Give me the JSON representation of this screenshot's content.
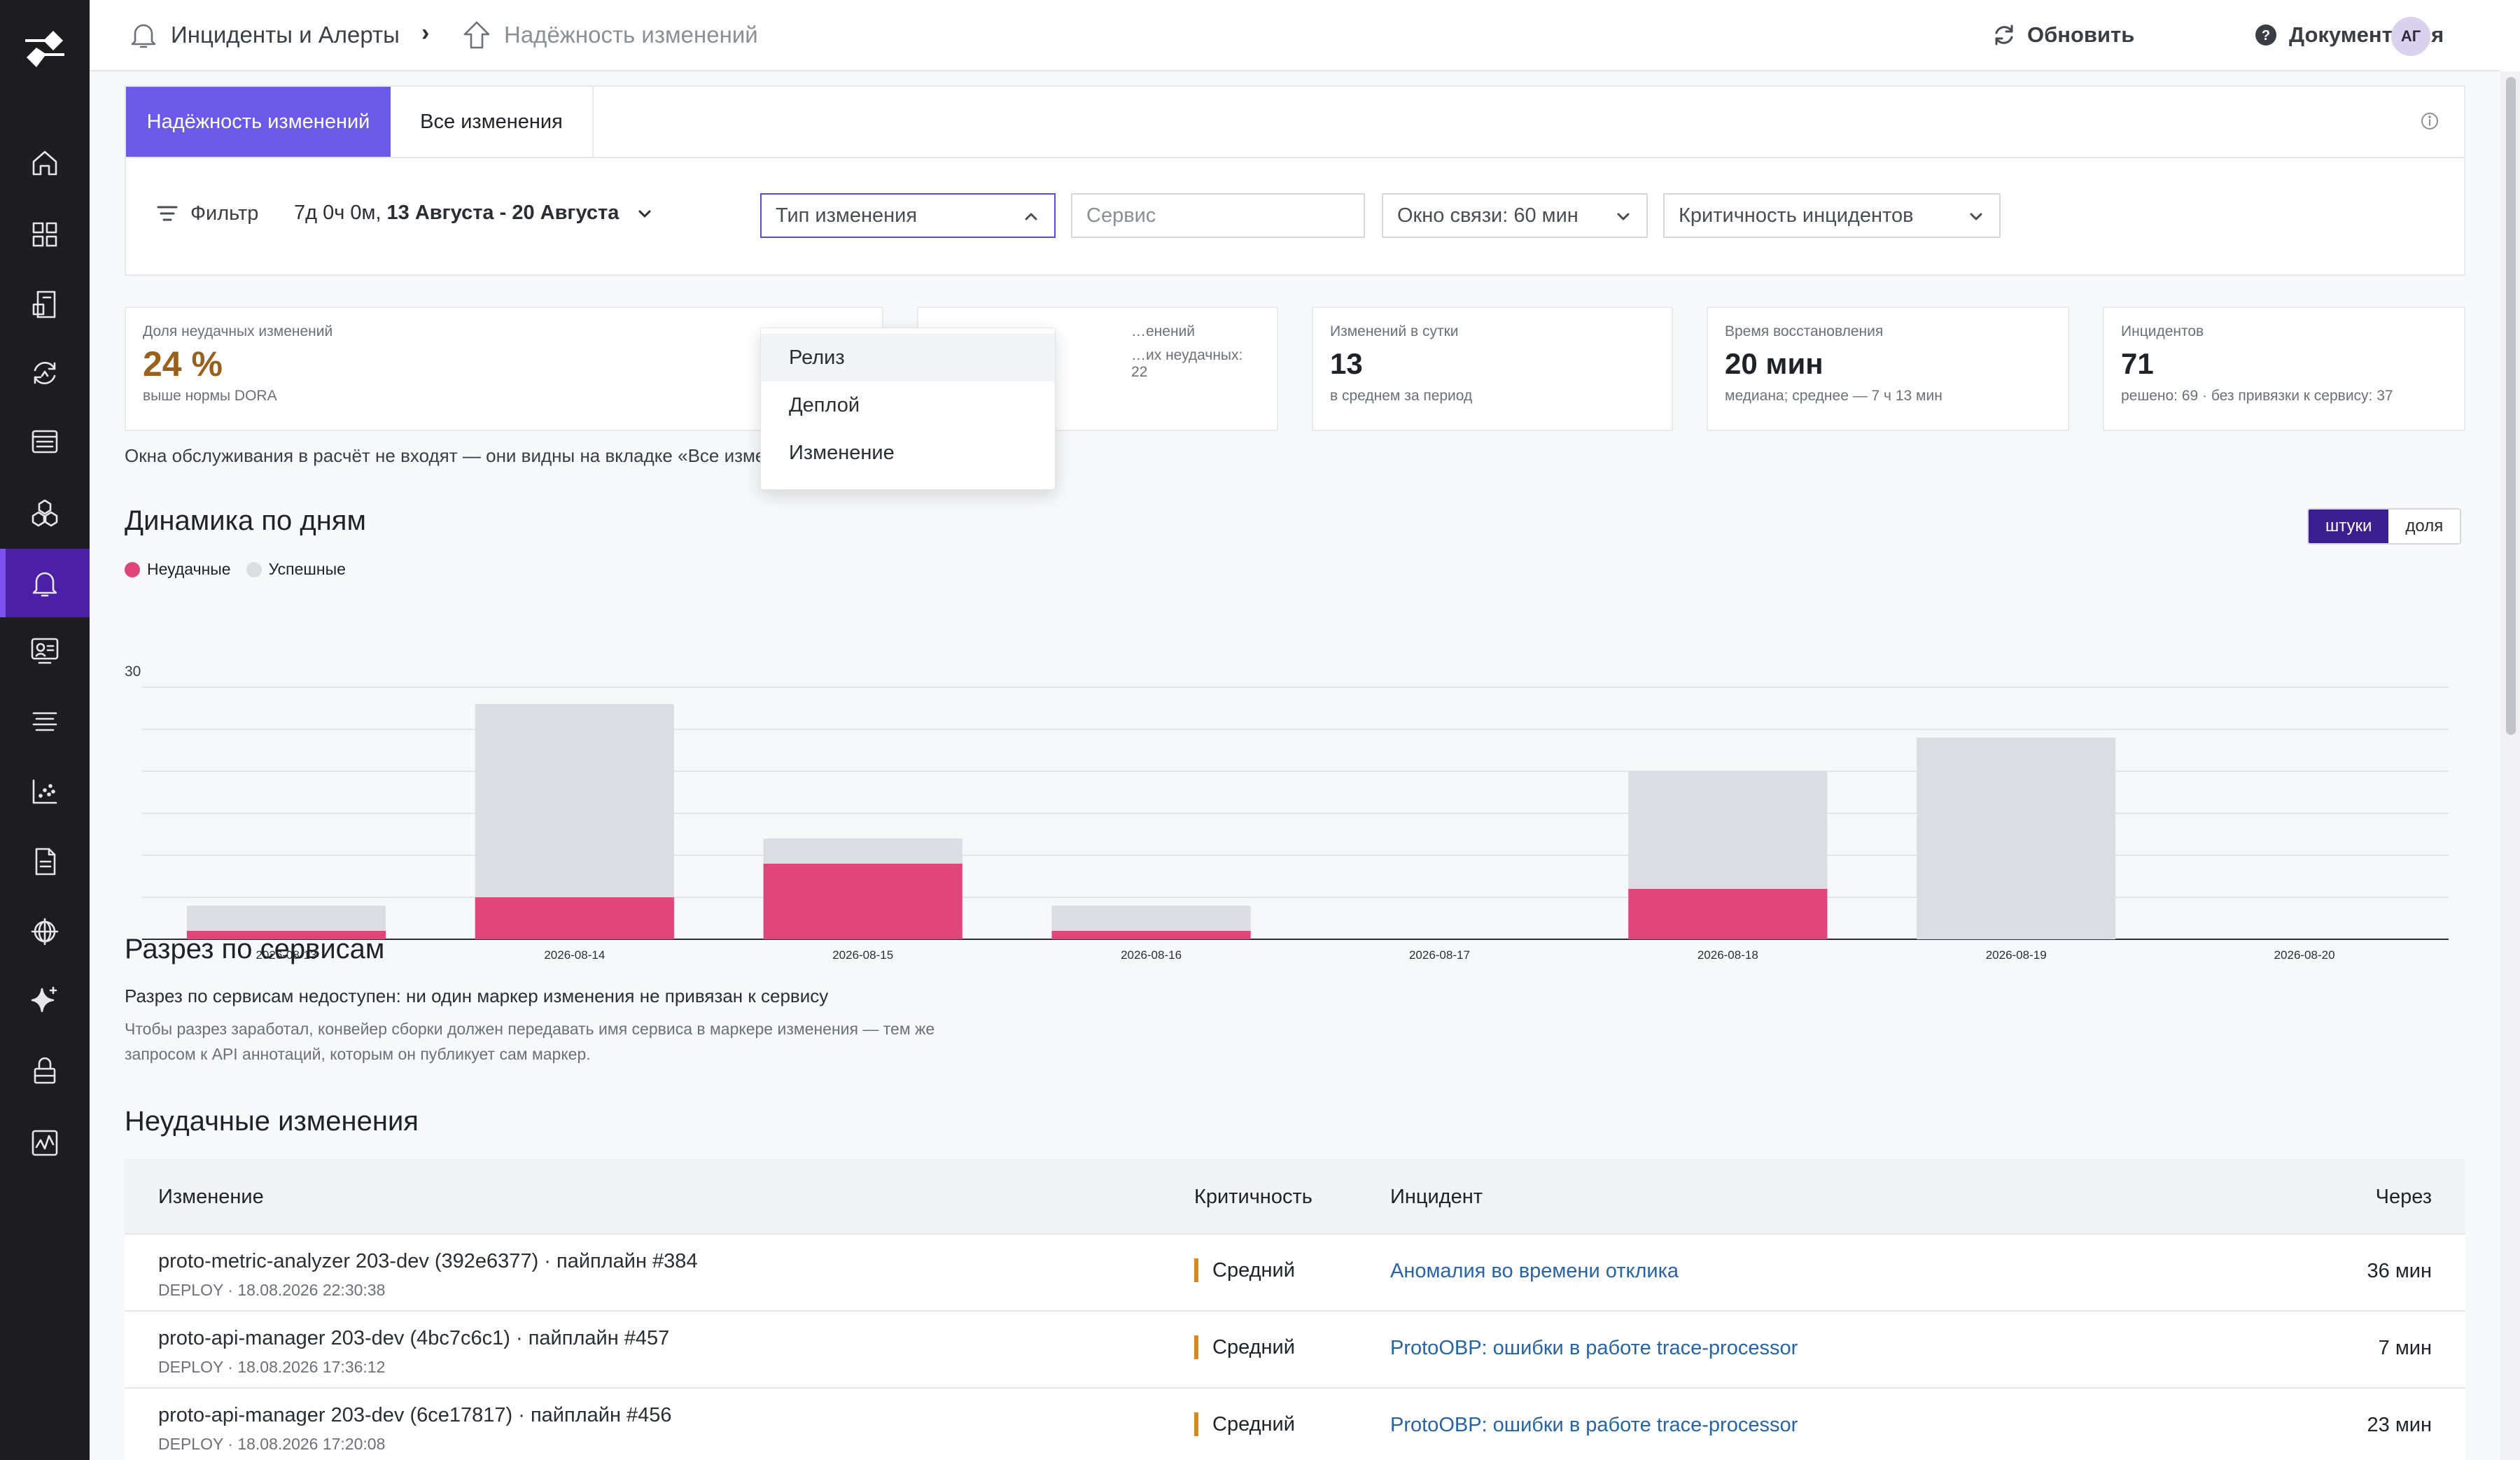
{
  "header": {
    "breadcrumb_root": "Инциденты и Алерты",
    "breadcrumb_current": "Надёжность изменений",
    "refresh": "Обновить",
    "docs": "Документация",
    "avatar": "АГ"
  },
  "sidebar": {
    "items": [
      {
        "name": "home",
        "icon": "home-icon"
      },
      {
        "name": "dashboards",
        "icon": "grid-icon"
      },
      {
        "name": "notebooks",
        "icon": "notebook-icon"
      },
      {
        "name": "sync",
        "icon": "cycle-icon"
      },
      {
        "name": "logs",
        "icon": "list-box-icon"
      },
      {
        "name": "services",
        "icon": "hexagons-icon"
      },
      {
        "name": "incidents",
        "icon": "bell-icon",
        "active": true
      },
      {
        "name": "monitoring",
        "icon": "screen-icon"
      },
      {
        "name": "pipelines",
        "icon": "stack-icon"
      },
      {
        "name": "metrics",
        "icon": "scatter-icon"
      },
      {
        "name": "reports",
        "icon": "doc-icon"
      },
      {
        "name": "network",
        "icon": "globe-icon"
      },
      {
        "name": "ai",
        "icon": "sparkle-icon"
      },
      {
        "name": "security",
        "icon": "lock-icon"
      },
      {
        "name": "activity",
        "icon": "pulse-icon"
      }
    ]
  },
  "tabs": {
    "active": "Надёжность изменений",
    "other": "Все изменения"
  },
  "filter": {
    "label": "Фильтр",
    "range_prefix": "7д 0ч 0м,",
    "range_dates": "13 Августа - 20 Августа",
    "change_type": "Тип изменения",
    "service_placeholder": "Сервис",
    "window": "Окно связи: 60 мин",
    "severity": "Критичность инцидентов"
  },
  "dropdown": {
    "options": [
      "Релиз",
      "Деплой",
      "Изменение"
    ]
  },
  "kpis": [
    {
      "label": "Доля неудачных изменений",
      "value": "24 %",
      "sub": "выше нормы DORA"
    },
    {
      "label": "…енений",
      "value": "",
      "sub": "…их неудачных: 22"
    },
    {
      "label": "Изменений в сутки",
      "value": "13",
      "sub": "в среднем за период"
    },
    {
      "label": "Время восстановления",
      "value": "20 мин",
      "sub": "медиана; среднее — 7 ч 13 мин"
    },
    {
      "label": "Инцидентов",
      "value": "71",
      "sub": "решено: 69 · без привязки к сервису: 37"
    }
  ],
  "note": "Окна обслуживания в расчёт не входят — они видны на вкладке «Все изменения».",
  "daily": {
    "title": "Динамика по дням",
    "mode_count": "штуки",
    "mode_share": "доля",
    "legend_failed": "Неудачные",
    "legend_ok": "Успешные",
    "color_failed": "#e0457a",
    "color_ok": "#dcdde2"
  },
  "chart_data": {
    "type": "bar",
    "stacked": true,
    "categories": [
      "2026-08-13",
      "2026-08-14",
      "2026-08-15",
      "2026-08-16",
      "2026-08-17",
      "2026-08-18",
      "2026-08-19",
      "2026-08-20"
    ],
    "series": [
      {
        "name": "Неудачные",
        "values": [
          1,
          5,
          9,
          1,
          0,
          6,
          0,
          0
        ]
      },
      {
        "name": "Успешные",
        "values": [
          3,
          23,
          3,
          3,
          0,
          14,
          24,
          0
        ]
      }
    ],
    "ylim": [
      0,
      30
    ],
    "y_tick_labels": [
      "30"
    ],
    "grid": true
  },
  "services": {
    "title": "Разрез по сервисам",
    "message": "Разрез по сервисам недоступен: ни один маркер изменения не привязан к сервису",
    "hint": "Чтобы разрез заработал, конвейер сборки должен передавать имя сервиса в маркере изменения — тем же запросом к API аннотаций, которым он публикует сам маркер."
  },
  "failed": {
    "title": "Неудачные изменения",
    "columns": [
      "Изменение",
      "Критичность",
      "Инцидент",
      "Через"
    ],
    "rows": [
      {
        "change": "proto-metric-analyzer 203-dev (392e6377) · пайплайн #384",
        "meta": "DEPLOY · 18.08.2026 22:30:38",
        "severity": "Средний",
        "incident": "Аномалия во времени отклика",
        "after": "36 мин"
      },
      {
        "change": "proto-api-manager 203-dev (4bc7c6c1) · пайплайн #457",
        "meta": "DEPLOY · 18.08.2026 17:36:12",
        "severity": "Средний",
        "incident": "ProtoOBP: ошибки в работе trace-processor",
        "after": "7 мин"
      },
      {
        "change": "proto-api-manager 203-dev (6ce17817) · пайплайн #456",
        "meta": "DEPLOY · 18.08.2026 17:20:08",
        "severity": "Средний",
        "incident": "ProtoOBP: ошибки в работе trace-processor",
        "after": "23 мин"
      }
    ]
  }
}
